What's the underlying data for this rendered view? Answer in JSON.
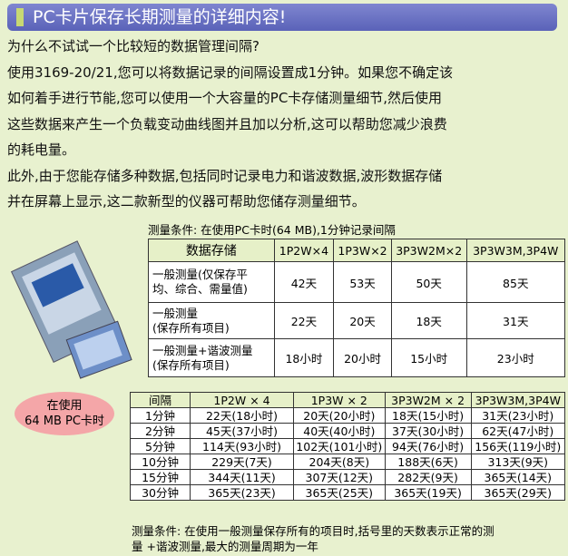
{
  "header": {
    "title": "PC卡片保存长期测量的详细内容!"
  },
  "paragraphs": [
    [
      "为什么不试试一个比较短的数据管理间隔?"
    ],
    [
      "使用3169-20/21,您可以将数据记录的间隔设置成1分钟。如果您不确定该",
      "如何着手进行节能,您可以使用一个大容量的PC卡存储测量细节,然后使用",
      "这些数据来产生一个负载变动曲线图并且加以分析,这可以帮助您减少浪费",
      "的耗电量。"
    ],
    [
      "此外,由于您能存储多种数据,包括同时记录电力和谐波数据,波形数据存储",
      "并在屏幕上显示,这二款新型的仪器可帮助您储存测量细节。"
    ]
  ],
  "table1": {
    "caption": "测量条件:  在使用PC卡时(64 MB),1分钟记录间隔",
    "header": [
      "数据存储",
      "1P2W×4",
      "1P3W×2",
      "3P3W2M×2",
      "3P3W3M,3P4W"
    ],
    "rows": [
      {
        "label": [
          "一般测量(仅保存平",
          "均、综合、需量值)"
        ],
        "values": [
          "42天",
          "53天",
          "50天",
          "85天"
        ]
      },
      {
        "label": [
          "一般测量",
          "(保存所有项目)"
        ],
        "values": [
          "22天",
          "20天",
          "18天",
          "31天"
        ]
      },
      {
        "label": [
          "一般测量+谐波测量",
          "(保存所有项目)"
        ],
        "values": [
          "18小时",
          "20小时",
          "15小时",
          "23小时"
        ]
      }
    ]
  },
  "badge": [
    "在使用",
    "64 MB PC卡时"
  ],
  "table2": {
    "header": [
      "间隔",
      "1P2W × 4",
      "1P3W × 2",
      "3P3W2M × 2",
      "3P3W3M,3P4W"
    ],
    "rows": [
      [
        "1分钟",
        "22天(18小时)",
        "20天(20小时)",
        "18天(15小时)",
        "31天(23小时)"
      ],
      [
        "2分钟",
        "45天(37小时)",
        "40天(40小时)",
        "37天(30小时)",
        "62天(47小时)"
      ],
      [
        "5分钟",
        "114天(93小时)",
        "102天(101小时)",
        "94天(76小时)",
        "156天(119小时)"
      ],
      [
        "10分钟",
        "229天(7天)",
        "204天(8天)",
        "188天(6天)",
        "313天(9天)"
      ],
      [
        "15分钟",
        "344天(11天)",
        "307天(12天)",
        "282天(9天)",
        "365天(14天)"
      ],
      [
        "30分钟",
        "365天(23天)",
        "365天(25天)",
        "365天(19天)",
        "365天(29天)"
      ]
    ]
  },
  "footnote": [
    "测量条件:  在使用一般测量保存所有的项目时,括号里的天数表示正常的测",
    "量 +谐波测量,最大的测量周期为一年"
  ]
}
